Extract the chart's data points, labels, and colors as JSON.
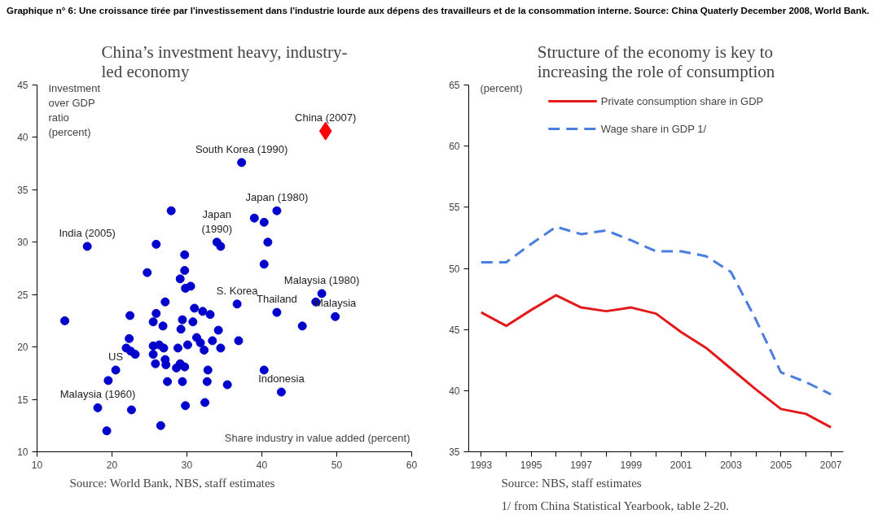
{
  "chart_data": [
    {
      "type": "scatter",
      "subtitle": "Graphique n° 6: Une croissance tirée par l'investissement dans l'industrie lourde aux dépens des travailleurs et de la consommation interne. Source: China Quaterly December 2008, World Bank.",
      "title": "China’s investment heavy, industry-\nled economy",
      "xlabel": "Share industry in value added (percent)",
      "ylabel": "Investment\nover GDP\nratio\n(percent)",
      "xlim": [
        10,
        60
      ],
      "xticks": [
        10,
        20,
        30,
        40,
        50,
        60
      ],
      "ylim": [
        10,
        45
      ],
      "yticks": [
        10,
        15,
        20,
        25,
        30,
        35,
        40,
        45
      ],
      "grid": false,
      "legend": false,
      "series": [
        {
          "color": "#0000cc",
          "marker": "circle",
          "x": [
            16.7,
            13.7,
            27.9,
            37.3,
            42.0,
            39.0,
            40.3,
            40.8,
            34.0,
            34.5,
            25.9,
            29.7,
            29.7,
            29.1,
            30.5,
            29.8,
            24.7,
            40.3,
            48.0,
            47.2,
            49.8,
            42.0,
            45.4,
            36.7,
            36.9,
            40.3,
            42.6,
            27.1,
            25.9,
            25.5,
            22.4,
            31.0,
            32.1,
            33.1,
            30.8,
            29.4,
            29.2,
            26.8,
            34.2,
            33.4,
            34.5,
            31.3,
            31.8,
            32.3,
            30.1,
            28.8,
            22.3,
            21.9,
            22.5,
            23.1,
            25.5,
            26.3,
            26.9,
            25.5,
            25.8,
            27.1,
            27.2,
            28.6,
            29.1,
            29.7,
            32.8,
            32.7,
            35.4,
            27.4,
            29.4,
            20.5,
            19.5,
            18.1,
            22.6,
            19.3,
            26.5,
            29.8,
            32.4
          ],
          "values": [
            29.6,
            22.5,
            33.0,
            37.6,
            33.0,
            32.3,
            31.9,
            30.0,
            30.0,
            29.6,
            29.8,
            28.8,
            27.3,
            26.5,
            25.8,
            25.6,
            27.1,
            27.9,
            25.1,
            24.3,
            22.9,
            23.3,
            22.0,
            24.1,
            20.6,
            17.8,
            15.7,
            24.3,
            23.2,
            22.4,
            23.0,
            23.7,
            23.4,
            23.1,
            22.4,
            22.6,
            21.7,
            22.0,
            21.6,
            20.6,
            19.9,
            20.9,
            20.4,
            19.7,
            20.2,
            19.9,
            20.8,
            19.9,
            19.6,
            19.3,
            20.1,
            20.2,
            19.9,
            19.3,
            18.4,
            18.8,
            18.3,
            18.0,
            18.4,
            18.1,
            17.8,
            16.7,
            16.4,
            16.7,
            16.7,
            17.8,
            16.8,
            14.2,
            14.0,
            12.0,
            12.5,
            14.4,
            14.7
          ]
        },
        {
          "color": "#ff0000",
          "marker": "diamond",
          "x": [
            48.5
          ],
          "values": [
            40.6
          ]
        }
      ],
      "annotations": [
        {
          "text": "China (2007)",
          "x": 48.5,
          "y": 40.6
        },
        {
          "text": "South Korea (1990)",
          "x": 37.3,
          "y": 37.6
        },
        {
          "text": "Japan\n(1990)",
          "x": 34.0,
          "y": 30.0
        },
        {
          "text": "Japan (1980)",
          "x": 42.0,
          "y": 33.0
        },
        {
          "text": "India (2005)",
          "x": 16.7,
          "y": 29.6
        },
        {
          "text": "Malaysia (1980)",
          "x": 48.0,
          "y": 25.1
        },
        {
          "text": "S. Korea",
          "x": 36.7,
          "y": 24.1
        },
        {
          "text": "Thailand",
          "x": 42.0,
          "y": 23.3
        },
        {
          "text": "Malaysia",
          "x": 49.8,
          "y": 22.9
        },
        {
          "text": "US",
          "x": 20.5,
          "y": 17.8
        },
        {
          "text": "Indonesia",
          "x": 42.6,
          "y": 15.7
        },
        {
          "text": "Malaysia (1960)",
          "x": 18.1,
          "y": 14.2
        },
        "Source: World Bank, NBS, staff estimates"
      ]
    },
    {
      "type": "line",
      "title": "Structure of the economy is key to\nincreasing the role of consumption",
      "ylabel": "(percent)",
      "x": [
        1993,
        1994,
        1995,
        1996,
        1997,
        1998,
        1999,
        2000,
        2001,
        2002,
        2003,
        2004,
        2005,
        2006,
        2007
      ],
      "xlim": [
        1992.5,
        2007.5
      ],
      "xticks": [
        1993,
        {
          "value": 1994,
          "label": null
        },
        1995,
        {
          "value": 1996,
          "label": null
        },
        1997,
        {
          "value": 1998,
          "label": null
        },
        1999,
        {
          "value": 2000,
          "label": null
        },
        2001,
        {
          "value": 2002,
          "label": null
        },
        2003,
        {
          "value": 2004,
          "label": null
        },
        2005,
        {
          "value": 2006,
          "label": null
        },
        2007
      ],
      "ylim": [
        35,
        65
      ],
      "yticks": [
        35,
        40,
        45,
        50,
        55,
        60,
        65
      ],
      "grid": false,
      "legend": "top",
      "series": [
        {
          "name": "Private consumption share in GDP",
          "color": "#e31a1c",
          "line_style": "solid",
          "values": [
            46.4,
            45.3,
            46.6,
            47.8,
            46.8,
            46.5,
            46.8,
            46.3,
            44.8,
            43.5,
            41.8,
            40.1,
            38.5,
            38.1,
            37.0
          ]
        },
        {
          "name": "Wage share in GDP 1/",
          "color": "#4a7ee0",
          "line_style": "dashed",
          "values": [
            50.5,
            50.5,
            52.0,
            53.4,
            52.8,
            53.1,
            52.3,
            51.4,
            51.4,
            51.0,
            49.7,
            45.8,
            41.5,
            40.7,
            39.7
          ]
        }
      ],
      "annotations": [
        "Source: NBS, staff estimates",
        "1/ from China Statistical Yearbook, table 2-20."
      ]
    }
  ]
}
